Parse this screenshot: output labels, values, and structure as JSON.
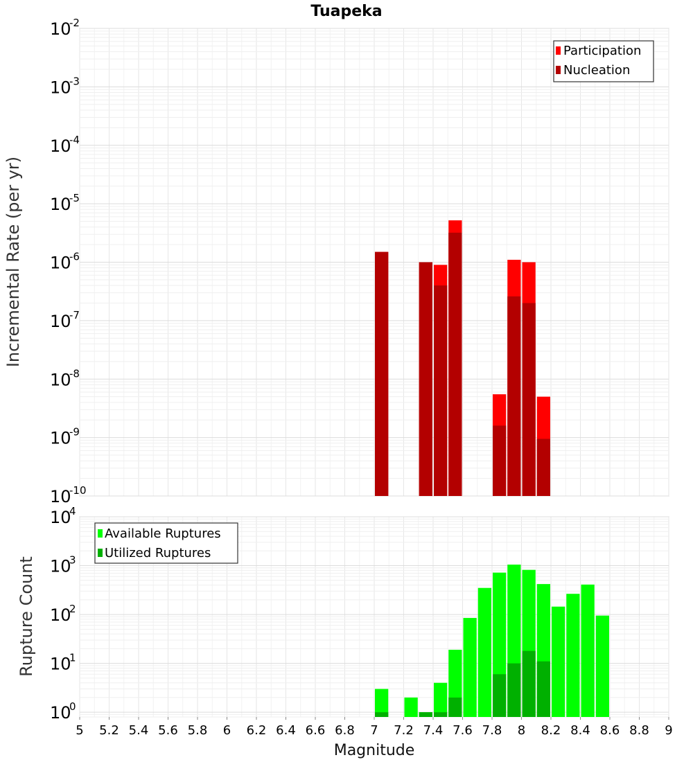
{
  "chart_data": [
    {
      "type": "bar",
      "title": "Tuapeka",
      "ylabel": "Incremental Rate (per yr)",
      "xlabel": "",
      "xlim": [
        5,
        9
      ],
      "ylim": [
        1e-10,
        0.01
      ],
      "yscale": "log",
      "ytick_exponents": [
        "-2",
        "-3",
        "-4",
        "-5",
        "-6",
        "-7",
        "-8",
        "-9",
        "-10"
      ],
      "ytick_base": "10",
      "legend_position": "top-right",
      "series": [
        {
          "name": "Participation",
          "color": "#ff0000",
          "x": [
            7.05,
            7.35,
            7.45,
            7.55,
            7.85,
            7.95,
            8.05,
            8.15
          ],
          "values": [
            1.5e-06,
            1e-06,
            9e-07,
            5.2e-06,
            5.5e-09,
            1.1e-06,
            1e-06,
            5e-09
          ]
        },
        {
          "name": "Nucleation",
          "color": "#b30000",
          "x": [
            7.05,
            7.35,
            7.45,
            7.55,
            7.85,
            7.95,
            8.05,
            8.15
          ],
          "values": [
            1.5e-06,
            1e-06,
            4e-07,
            3.2e-06,
            1.6e-09,
            2.6e-07,
            2e-07,
            9.5e-10
          ]
        }
      ]
    },
    {
      "type": "bar",
      "title": "",
      "ylabel": "Rupture Count",
      "xlabel": "Magnitude",
      "xlim": [
        5,
        9
      ],
      "ylim": [
        0.8,
        10000
      ],
      "yscale": "log",
      "ytick_exponents": [
        "4",
        "3",
        "2",
        "1",
        "0"
      ],
      "ytick_base": "10",
      "legend_position": "top-left",
      "xticks": [
        "5",
        "5.2",
        "5.4",
        "5.6",
        "5.8",
        "6",
        "6.2",
        "6.4",
        "6.6",
        "6.8",
        "7",
        "7.2",
        "7.4",
        "7.6",
        "7.8",
        "8",
        "8.2",
        "8.4",
        "8.6",
        "8.8",
        "9"
      ],
      "series": [
        {
          "name": "Available Ruptures",
          "color": "#00ff00",
          "x": [
            7.05,
            7.25,
            7.35,
            7.45,
            7.55,
            7.65,
            7.75,
            7.85,
            7.95,
            8.05,
            8.15,
            8.25,
            8.35,
            8.45,
            8.55
          ],
          "values": [
            3,
            2,
            1,
            4,
            19,
            85,
            350,
            720,
            1050,
            820,
            420,
            145,
            265,
            410,
            95
          ]
        },
        {
          "name": "Utilized Ruptures",
          "color": "#00b000",
          "x": [
            7.05,
            7.25,
            7.35,
            7.45,
            7.55,
            7.65,
            7.75,
            7.85,
            7.95,
            8.05,
            8.15,
            8.25,
            8.35,
            8.45,
            8.55
          ],
          "values": [
            1,
            0,
            1,
            1,
            2,
            0,
            0,
            6,
            10,
            18,
            11,
            0,
            0,
            0,
            0
          ]
        }
      ]
    }
  ]
}
